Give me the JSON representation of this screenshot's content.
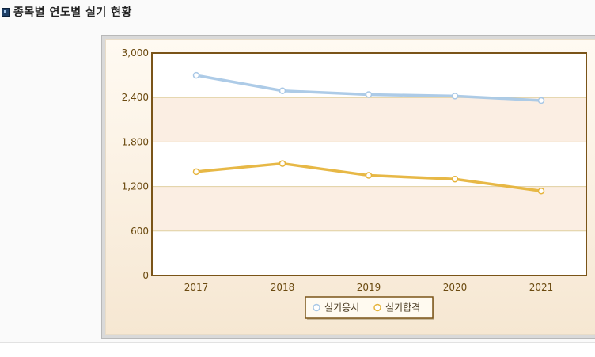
{
  "header": {
    "title": "종목별 연도별 실기 현황"
  },
  "colors": {
    "series1": "#a9c8e6",
    "series2": "#e6b43c",
    "axis": "#7a5418",
    "band": "#fbeee3"
  },
  "chart_data": {
    "type": "line",
    "title": "",
    "xlabel": "",
    "ylabel": "",
    "categories": [
      "2017",
      "2018",
      "2019",
      "2020",
      "2021"
    ],
    "ylim": [
      0,
      3000
    ],
    "yticks": [
      "0",
      "600",
      "1,200",
      "1,800",
      "2,400",
      "3,000"
    ],
    "grid": true,
    "legend": "bottom-center",
    "series": [
      {
        "name": "실기응시",
        "values": [
          2700,
          2490,
          2440,
          2420,
          2360
        ]
      },
      {
        "name": "실기합격",
        "values": [
          1400,
          1510,
          1350,
          1300,
          1140
        ]
      }
    ]
  }
}
